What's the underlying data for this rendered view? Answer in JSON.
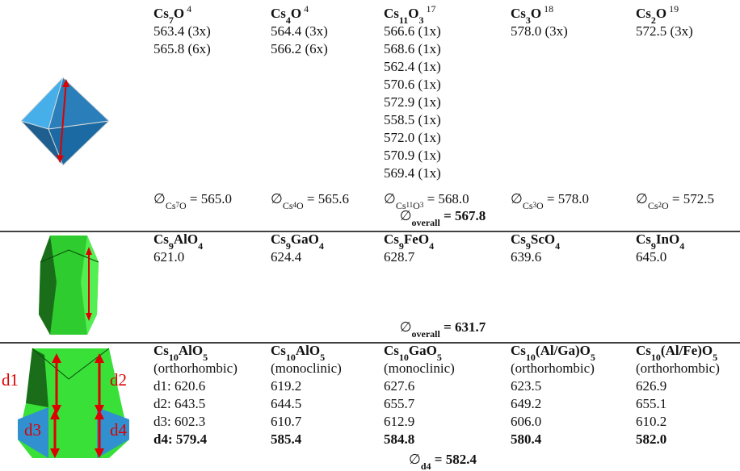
{
  "sections": [
    {
      "columns": [
        {
          "name": [
            "Cs",
            "7",
            "O"
          ],
          "ref": "4",
          "lines": [
            "563.4 (3x)",
            "565.8 (6x)"
          ],
          "avg": {
            "symbol": "∅",
            "sub": [
              "Cs",
              "7",
              "O"
            ],
            "rest": " = 565.0"
          }
        },
        {
          "name": [
            "Cs",
            "4",
            "O"
          ],
          "ref": "4",
          "lines": [
            "564.4 (3x)",
            "566.2 (6x)"
          ],
          "avg": {
            "symbol": "∅",
            "sub": [
              "Cs",
              "4",
              "O"
            ],
            "rest": " = 565.6"
          }
        },
        {
          "name": [
            "Cs",
            "11",
            "O",
            "3"
          ],
          "ref": "17",
          "lines": [
            "566.6 (1x)",
            "568.6 (1x)",
            "562.4 (1x)",
            "570.6 (1x)",
            "572.9 (1x)",
            "558.5 (1x)",
            "572.0 (1x)",
            "570.9 (1x)",
            "569.4 (1x)"
          ],
          "avg": {
            "symbol": "∅",
            "sub": [
              "Cs",
              "11",
              "O",
              "3"
            ],
            "rest": " = 568.0"
          }
        },
        {
          "name": [
            "Cs",
            "3",
            "O"
          ],
          "ref": "18",
          "lines": [
            "578.0 (3x)"
          ],
          "avg": {
            "symbol": "∅",
            "sub": [
              "Cs",
              "3",
              "O"
            ],
            "rest": " = 578.0"
          }
        },
        {
          "name": [
            "Cs",
            "2",
            "O"
          ],
          "ref": "19",
          "lines": [
            "572.5 (3x)"
          ],
          "avg": {
            "symbol": "∅",
            "sub": [
              "Cs",
              "2",
              "O"
            ],
            "rest": " = 572.5"
          }
        }
      ],
      "overall": {
        "symbol": "∅",
        "sub": "overall",
        "rest": " = 567.8"
      }
    },
    {
      "columns": [
        {
          "name": [
            "Cs",
            "9",
            "AlO",
            "4"
          ],
          "lines": [
            "621.0"
          ]
        },
        {
          "name": [
            "Cs",
            "9",
            "GaO",
            "4"
          ],
          "lines": [
            "624.4"
          ]
        },
        {
          "name": [
            "Cs",
            "9",
            "FeO",
            "4"
          ],
          "lines": [
            "628.7"
          ]
        },
        {
          "name": [
            "Cs",
            "9",
            "ScO",
            "4"
          ],
          "lines": [
            "639.6"
          ]
        },
        {
          "name": [
            "Cs",
            "9",
            "InO",
            "4"
          ],
          "lines": [
            "645.0"
          ]
        }
      ],
      "overall": {
        "symbol": "∅",
        "sub": "overall",
        "rest": " = 631.7"
      }
    },
    {
      "labels": [
        "d1",
        "d2",
        "d3",
        "d4"
      ],
      "columns": [
        {
          "name": [
            "Cs",
            "10",
            "AlO",
            "5"
          ],
          "lines": [
            "(orthorhombic)",
            "d1: 620.6",
            "d2: 643.5",
            "d3: 602.3"
          ],
          "bold_line": "d4: 579.4"
        },
        {
          "name": [
            "Cs",
            "10",
            "AlO",
            "5"
          ],
          "lines": [
            "(monoclinic)",
            "619.2",
            "644.5",
            "610.7"
          ],
          "bold_line": "585.4"
        },
        {
          "name": [
            "Cs",
            "10",
            "GaO",
            "5"
          ],
          "lines": [
            "(monoclinic)",
            "627.6",
            "655.7",
            "612.9"
          ],
          "bold_line": "584.8"
        },
        {
          "name": [
            "Cs",
            "10",
            "(Al/Ga)O",
            "5"
          ],
          "lines": [
            "(orthorhombic)",
            "623.5",
            "649.2",
            "606.0"
          ],
          "bold_line": "580.4"
        },
        {
          "name": [
            "Cs",
            "10",
            "(Al/Fe)O",
            "5"
          ],
          "lines": [
            "(orthorhombic)",
            "626.9",
            "655.1",
            "610.2"
          ],
          "bold_line": "582.0"
        }
      ],
      "overall": {
        "symbol": "∅",
        "sub": "d4",
        "rest": " = 582.4"
      }
    }
  ]
}
